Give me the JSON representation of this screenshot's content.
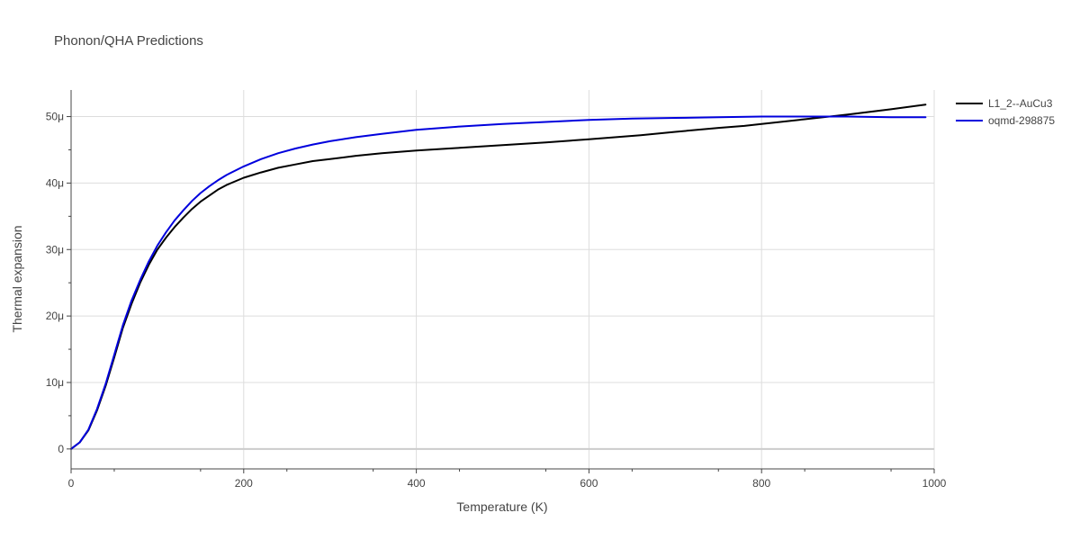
{
  "chart_data": {
    "type": "line",
    "title": "Phonon/QHA Predictions",
    "xlabel": "Temperature (K)",
    "ylabel": "Thermal expansion",
    "xlim": [
      0,
      1000
    ],
    "ylim": [
      -3,
      54
    ],
    "x_ticks": [
      {
        "value": 0,
        "label": "0"
      },
      {
        "value": 200,
        "label": "200"
      },
      {
        "value": 400,
        "label": "400"
      },
      {
        "value": 600,
        "label": "600"
      },
      {
        "value": 800,
        "label": "800"
      },
      {
        "value": 1000,
        "label": "1000"
      }
    ],
    "y_ticks": [
      {
        "value": 0,
        "label": "0"
      },
      {
        "value": 10,
        "label": "10μ"
      },
      {
        "value": 20,
        "label": "20μ"
      },
      {
        "value": 30,
        "label": "30μ"
      },
      {
        "value": 40,
        "label": "40μ"
      },
      {
        "value": 50,
        "label": "50μ"
      }
    ],
    "grid": true,
    "legend_position": "top-right",
    "series": [
      {
        "name": "L1_2--AuCu3",
        "color": "#000000",
        "x": [
          0,
          10,
          20,
          30,
          40,
          50,
          60,
          70,
          80,
          90,
          100,
          110,
          120,
          130,
          140,
          150,
          160,
          170,
          180,
          200,
          220,
          240,
          260,
          280,
          300,
          330,
          360,
          400,
          450,
          500,
          550,
          600,
          660,
          700,
          750,
          780,
          800,
          850,
          900,
          950,
          990
        ],
        "y": [
          0,
          1,
          2.8,
          5.8,
          9.5,
          13.8,
          18.2,
          21.8,
          25.0,
          27.7,
          30.0,
          31.8,
          33.4,
          34.8,
          36.1,
          37.2,
          38.1,
          39.0,
          39.7,
          40.8,
          41.6,
          42.3,
          42.8,
          43.3,
          43.6,
          44.1,
          44.5,
          44.9,
          45.3,
          45.7,
          46.1,
          46.6,
          47.2,
          47.7,
          48.3,
          48.6,
          48.9,
          49.6,
          50.3,
          51.1,
          51.8
        ]
      },
      {
        "name": "oqmd-298875",
        "color": "#0000dd",
        "x": [
          0,
          10,
          20,
          30,
          40,
          50,
          60,
          70,
          80,
          90,
          100,
          110,
          120,
          130,
          140,
          150,
          160,
          170,
          180,
          200,
          220,
          240,
          260,
          280,
          300,
          330,
          360,
          400,
          450,
          500,
          550,
          600,
          650,
          700,
          750,
          800,
          850,
          900,
          950,
          990
        ],
        "y": [
          0,
          1,
          2.9,
          6.0,
          9.8,
          14.2,
          18.6,
          22.3,
          25.4,
          28.2,
          30.6,
          32.6,
          34.4,
          35.9,
          37.3,
          38.5,
          39.5,
          40.4,
          41.2,
          42.5,
          43.6,
          44.5,
          45.2,
          45.8,
          46.3,
          46.9,
          47.4,
          48.0,
          48.5,
          48.9,
          49.2,
          49.5,
          49.7,
          49.8,
          49.9,
          50.0,
          50.0,
          50.0,
          49.9,
          49.9
        ]
      }
    ]
  }
}
